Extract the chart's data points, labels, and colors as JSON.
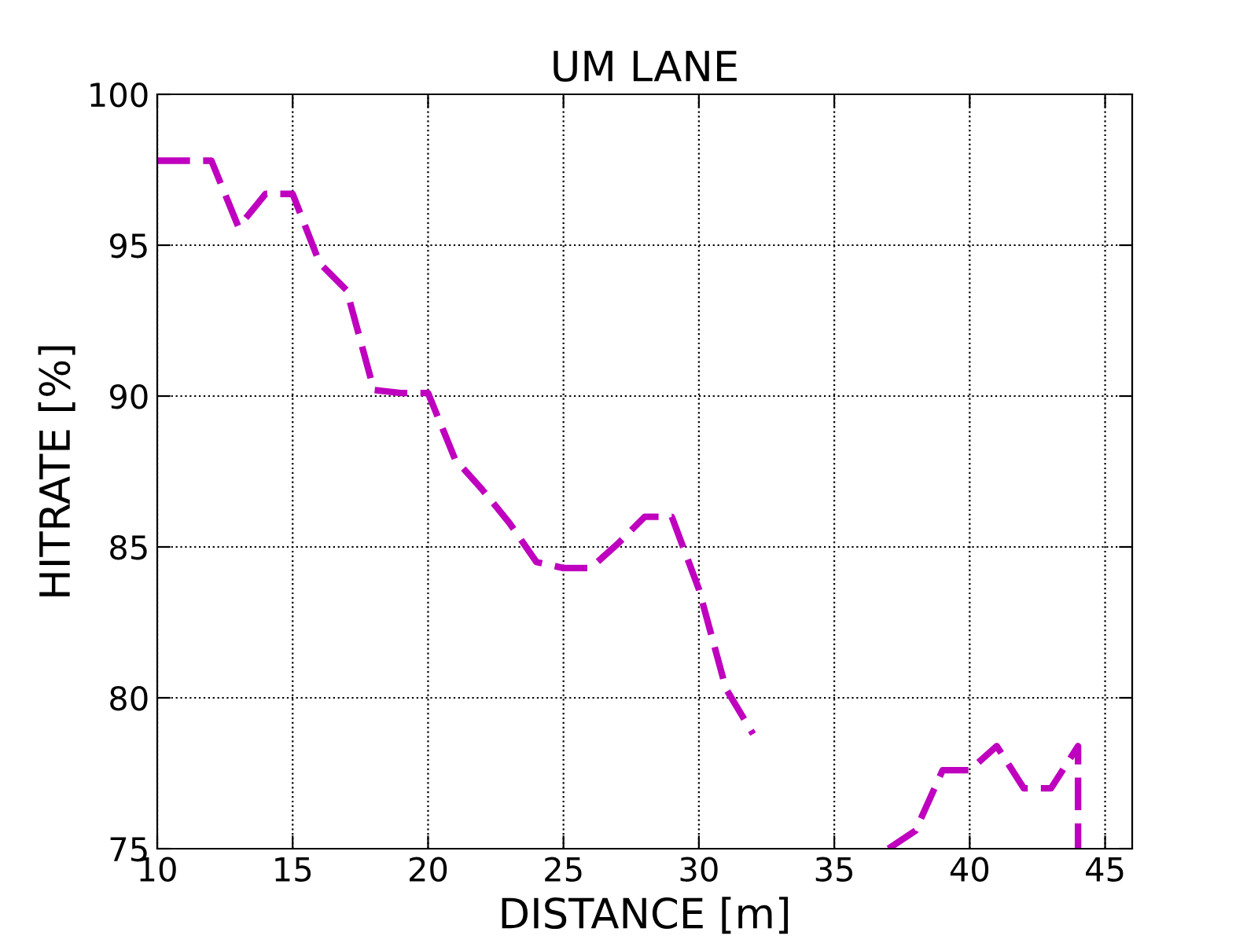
{
  "chart_data": {
    "type": "line",
    "title": "UM LANE",
    "xlabel": "DISTANCE [m]",
    "ylabel": "HITRATE [%]",
    "series": [
      {
        "color": "#bf00bf",
        "x": [
          10,
          11,
          12,
          13,
          14,
          15,
          16,
          17,
          18,
          19,
          20,
          21,
          22,
          23,
          24,
          25,
          26,
          27,
          28,
          29,
          30,
          31,
          32,
          33,
          34,
          35,
          36,
          37,
          38,
          39,
          40,
          41,
          42,
          43,
          44,
          44
        ],
        "values": [
          97.8,
          97.8,
          97.8,
          95.6,
          96.7,
          96.7,
          94.4,
          93.5,
          90.2,
          90.1,
          90.1,
          87.9,
          86.9,
          85.8,
          84.5,
          84.3,
          84.3,
          85.1,
          86.0,
          86.0,
          83.6,
          80.3,
          78.8,
          null,
          null,
          null,
          null,
          75.0,
          75.6,
          77.6,
          77.6,
          78.4,
          77.0,
          77.0,
          78.4,
          75.0
        ]
      }
    ],
    "xlim": [
      10,
      46
    ],
    "xticks": [
      10,
      15,
      20,
      25,
      30,
      35,
      40,
      45
    ],
    "ylim": [
      75,
      100
    ],
    "yticks": [
      75,
      80,
      85,
      90,
      95,
      100
    ],
    "grid": true,
    "line_style": "dashed",
    "marker": "none"
  }
}
